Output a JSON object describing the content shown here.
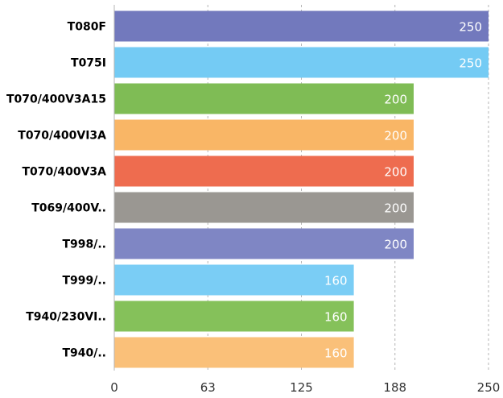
{
  "chart_data": {
    "type": "bar",
    "orientation": "horizontal",
    "categories": [
      "T080F",
      "T075I",
      "T070/400V3A15",
      "T070/400VI3A",
      "T070/400V3A",
      "T069/400V..",
      "T998/..",
      "T999/..",
      "T940/230VI..",
      "T940/.."
    ],
    "values": [
      250,
      250,
      200,
      200,
      200,
      200,
      200,
      160,
      160,
      160
    ],
    "value_labels": [
      "250",
      "250",
      "200",
      "200",
      "200",
      "200",
      "200",
      "160",
      "160",
      "160"
    ],
    "colors": [
      "#7279BD",
      "#74CBF4",
      "#7FBC55",
      "#F9B666",
      "#EE6C4F",
      "#9A9792",
      "#7F86C4",
      "#7ACDF5",
      "#85C15A",
      "#FAC079"
    ],
    "x_ticks": [
      "0",
      "63",
      "125",
      "188",
      "250"
    ],
    "xlim": [
      0,
      250
    ],
    "grid": "vertical dashed",
    "title": "",
    "xlabel": "",
    "ylabel": ""
  }
}
